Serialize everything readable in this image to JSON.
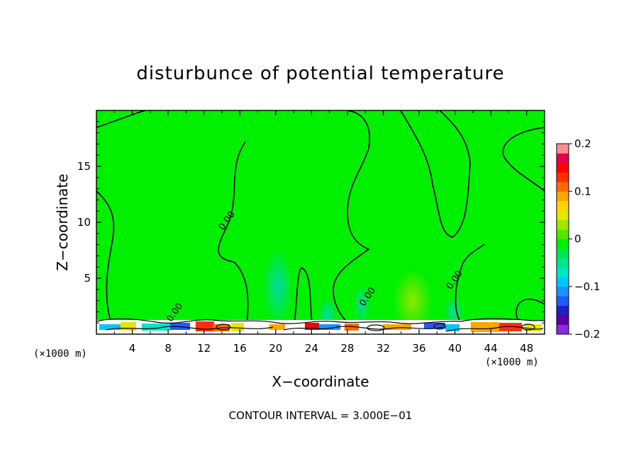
{
  "chart_data": {
    "type": "heatmap",
    "title": "disturbunce of potential temperature",
    "xlabel": "X−coordinate",
    "ylabel": "Z−coordinate",
    "x_unit_left": "(×1000 m)",
    "x_unit_right": "(×1000 m)",
    "xlim": [
      0,
      50
    ],
    "ylim": [
      0,
      20
    ],
    "x_ticks": [
      4,
      8,
      12,
      16,
      20,
      24,
      28,
      32,
      36,
      40,
      44,
      48
    ],
    "x_tick_labels": [
      "4",
      "8",
      "12",
      "16",
      "20",
      "24",
      "28",
      "32",
      "36",
      "40",
      "44",
      "48"
    ],
    "y_ticks": [
      5,
      10,
      15
    ],
    "y_tick_labels": [
      "5",
      "10",
      "15"
    ],
    "colorbar": {
      "range": [
        -0.2,
        0.2
      ],
      "tick_values": [
        0.2,
        0.1,
        0,
        -0.1,
        -0.2
      ],
      "tick_labels": [
        "0.2",
        "0.1",
        "0",
        "−0.1",
        "−0.2"
      ],
      "colors": [
        "#8a2be2",
        "#5a00a0",
        "#2020c0",
        "#1e5aff",
        "#1e90ff",
        "#00c8ff",
        "#00e6c8",
        "#00e68c",
        "#00e650",
        "#00f000",
        "#55e600",
        "#a0e600",
        "#e6e600",
        "#ffd700",
        "#ffa500",
        "#ff6a00",
        "#ff3000",
        "#ff0000",
        "#e60050",
        "#ff9090"
      ]
    },
    "background_color": "#00f000",
    "contour_labels": [
      {
        "text": "0.00",
        "x": 14.8,
        "z": 10.0
      },
      {
        "text": "0.00",
        "x": 9.0,
        "z": 1.8
      },
      {
        "text": "0.00",
        "x": 30.5,
        "z": 3.2
      },
      {
        "text": "0.00",
        "x": 40.2,
        "z": 4.7
      }
    ],
    "footer": "CONTOUR INTERVAL = 3.000E−01"
  }
}
